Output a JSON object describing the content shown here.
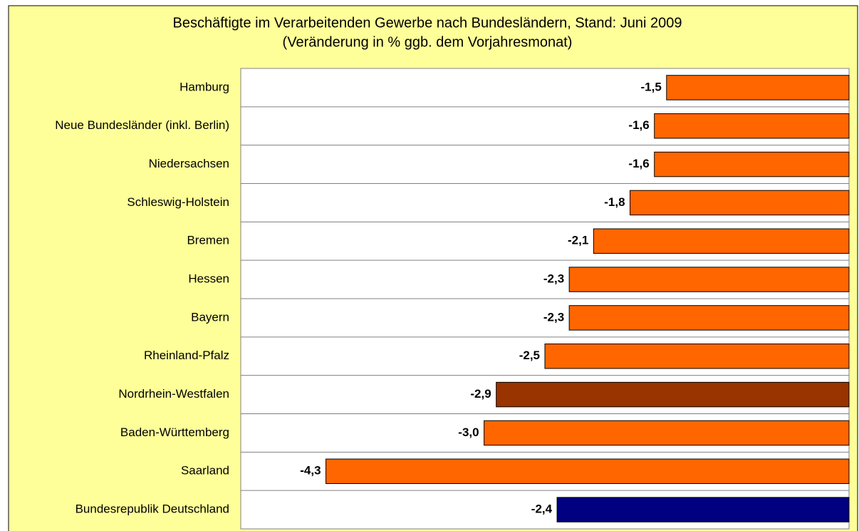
{
  "chart_data": {
    "type": "barh",
    "title": "Beschäftigte im Verarbeitenden Gewerbe nach Bundesländern, Stand: Juni 2009",
    "subtitle": "(Veränderung in % ggb. dem Vorjahresmonat)",
    "categories": [
      "Hamburg",
      "Neue Bundesländer (inkl. Berlin)",
      "Niedersachsen",
      "Schleswig-Holstein",
      "Bremen",
      "Hessen",
      "Bayern",
      "Rheinland-Pfalz",
      "Nordrhein-Westfalen",
      "Baden-Württemberg",
      "Saarland",
      "Bundesrepublik Deutschland"
    ],
    "values": [
      -1.5,
      -1.6,
      -1.6,
      -1.8,
      -2.1,
      -2.3,
      -2.3,
      -2.5,
      -2.9,
      -3.0,
      -4.3,
      -2.4
    ],
    "value_labels": [
      "-1,5",
      "-1,6",
      "-1,6",
      "-1,8",
      "-2,1",
      "-2,3",
      "-2,3",
      "-2,5",
      "-2,9",
      "-3,0",
      "-4,3",
      "-2,4"
    ],
    "colors": [
      "#ff6600",
      "#ff6600",
      "#ff6600",
      "#ff6600",
      "#ff6600",
      "#ff6600",
      "#ff6600",
      "#ff6600",
      "#993300",
      "#ff6600",
      "#ff6600",
      "#000080"
    ],
    "xlim": [
      -5,
      0
    ],
    "grid": true
  }
}
